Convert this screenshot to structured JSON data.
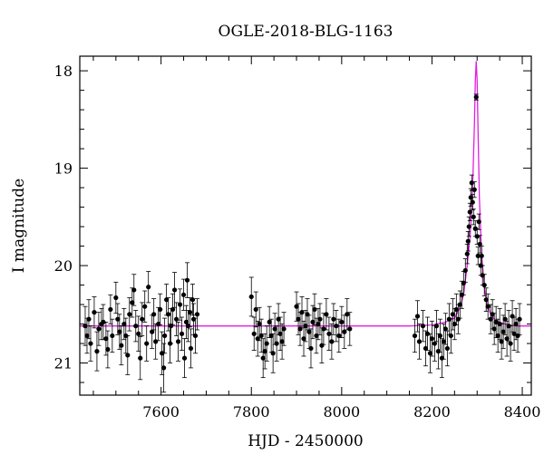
{
  "chart_data": {
    "type": "scatter",
    "title": "OGLE-2018-BLG-1163",
    "xlabel": "HJD - 2450000",
    "ylabel": "I magnitude",
    "xlim": [
      7420,
      8420
    ],
    "ylim": [
      21.33,
      17.85
    ],
    "y_inverted": true,
    "x_ticks": [
      7600,
      7800,
      8000,
      8200,
      8400
    ],
    "y_ticks": [
      18,
      19,
      20,
      21
    ],
    "grid": false,
    "colors": {
      "data": "#000000",
      "model": "#e020e0"
    },
    "model": {
      "name": "",
      "x": [
        7420,
        7600,
        7800,
        8000,
        8150,
        8200,
        8230,
        8250,
        8262,
        8270,
        8278,
        8284,
        8288,
        8291,
        8294,
        8296,
        8298,
        8300,
        8302,
        8305,
        8310,
        8316,
        8322,
        8330,
        8340,
        8355,
        8370,
        8390,
        8420
      ],
      "y": [
        20.62,
        20.62,
        20.62,
        20.62,
        20.62,
        20.61,
        20.58,
        20.54,
        20.43,
        20.3,
        20.0,
        19.72,
        19.42,
        19.05,
        18.55,
        18.1,
        17.9,
        18.1,
        18.6,
        19.3,
        19.9,
        20.22,
        20.4,
        20.5,
        20.56,
        20.59,
        20.61,
        20.62,
        20.62
      ]
    },
    "points": [
      {
        "x": 7432,
        "y": 20.62,
        "e": 0.2
      },
      {
        "x": 7436,
        "y": 20.72,
        "e": 0.18
      },
      {
        "x": 7440,
        "y": 20.55,
        "e": 0.2
      },
      {
        "x": 7444,
        "y": 20.8,
        "e": 0.18
      },
      {
        "x": 7452,
        "y": 20.48,
        "e": 0.16
      },
      {
        "x": 7458,
        "y": 20.88,
        "e": 0.2
      },
      {
        "x": 7462,
        "y": 20.65,
        "e": 0.17
      },
      {
        "x": 7468,
        "y": 20.6,
        "e": 0.16
      },
      {
        "x": 7472,
        "y": 20.58,
        "e": 0.18
      },
      {
        "x": 7478,
        "y": 20.75,
        "e": 0.17
      },
      {
        "x": 7482,
        "y": 20.86,
        "e": 0.19
      },
      {
        "x": 7488,
        "y": 20.45,
        "e": 0.15
      },
      {
        "x": 7492,
        "y": 20.72,
        "e": 0.17
      },
      {
        "x": 7500,
        "y": 20.33,
        "e": 0.16
      },
      {
        "x": 7504,
        "y": 20.55,
        "e": 0.16
      },
      {
        "x": 7508,
        "y": 20.68,
        "e": 0.18
      },
      {
        "x": 7512,
        "y": 20.82,
        "e": 0.2
      },
      {
        "x": 7518,
        "y": 20.6,
        "e": 0.16
      },
      {
        "x": 7522,
        "y": 20.72,
        "e": 0.18
      },
      {
        "x": 7526,
        "y": 20.92,
        "e": 0.2
      },
      {
        "x": 7530,
        "y": 20.5,
        "e": 0.17
      },
      {
        "x": 7536,
        "y": 20.38,
        "e": 0.15
      },
      {
        "x": 7540,
        "y": 20.25,
        "e": 0.16
      },
      {
        "x": 7544,
        "y": 20.62,
        "e": 0.16
      },
      {
        "x": 7550,
        "y": 20.7,
        "e": 0.18
      },
      {
        "x": 7554,
        "y": 20.95,
        "e": 0.22
      },
      {
        "x": 7558,
        "y": 20.55,
        "e": 0.17
      },
      {
        "x": 7564,
        "y": 20.42,
        "e": 0.16
      },
      {
        "x": 7568,
        "y": 20.8,
        "e": 0.18
      },
      {
        "x": 7572,
        "y": 20.22,
        "e": 0.16
      },
      {
        "x": 7580,
        "y": 20.68,
        "e": 0.17
      },
      {
        "x": 7584,
        "y": 20.5,
        "e": 0.16
      },
      {
        "x": 7588,
        "y": 20.78,
        "e": 0.18
      },
      {
        "x": 7594,
        "y": 20.6,
        "e": 0.17
      },
      {
        "x": 7598,
        "y": 20.45,
        "e": 0.16
      },
      {
        "x": 7602,
        "y": 20.9,
        "e": 0.22
      },
      {
        "x": 7606,
        "y": 21.05,
        "e": 0.25
      },
      {
        "x": 7608,
        "y": 20.72,
        "e": 0.18
      },
      {
        "x": 7612,
        "y": 20.35,
        "e": 0.16
      },
      {
        "x": 7616,
        "y": 20.5,
        "e": 0.17
      },
      {
        "x": 7620,
        "y": 20.8,
        "e": 0.2
      },
      {
        "x": 7622,
        "y": 20.62,
        "e": 0.18
      },
      {
        "x": 7626,
        "y": 20.45,
        "e": 0.16
      },
      {
        "x": 7630,
        "y": 20.25,
        "e": 0.18
      },
      {
        "x": 7634,
        "y": 20.55,
        "e": 0.17
      },
      {
        "x": 7638,
        "y": 20.78,
        "e": 0.2
      },
      {
        "x": 7642,
        "y": 20.4,
        "e": 0.16
      },
      {
        "x": 7646,
        "y": 20.7,
        "e": 0.17
      },
      {
        "x": 7650,
        "y": 20.3,
        "e": 0.16
      },
      {
        "x": 7652,
        "y": 20.95,
        "e": 0.2
      },
      {
        "x": 7656,
        "y": 20.58,
        "e": 0.17
      },
      {
        "x": 7658,
        "y": 20.15,
        "e": 0.18
      },
      {
        "x": 7660,
        "y": 20.62,
        "e": 0.16
      },
      {
        "x": 7664,
        "y": 20.48,
        "e": 0.15
      },
      {
        "x": 7666,
        "y": 20.85,
        "e": 0.2
      },
      {
        "x": 7670,
        "y": 20.35,
        "e": 0.16
      },
      {
        "x": 7672,
        "y": 20.55,
        "e": 0.16
      },
      {
        "x": 7676,
        "y": 20.72,
        "e": 0.18
      },
      {
        "x": 7680,
        "y": 20.5,
        "e": 0.16
      },
      {
        "x": 7800,
        "y": 20.32,
        "e": 0.2
      },
      {
        "x": 7806,
        "y": 20.7,
        "e": 0.17
      },
      {
        "x": 7810,
        "y": 20.45,
        "e": 0.18
      },
      {
        "x": 7814,
        "y": 20.75,
        "e": 0.18
      },
      {
        "x": 7818,
        "y": 20.6,
        "e": 0.17
      },
      {
        "x": 7822,
        "y": 20.72,
        "e": 0.17
      },
      {
        "x": 7826,
        "y": 20.95,
        "e": 0.2
      },
      {
        "x": 7830,
        "y": 20.88,
        "e": 0.18
      },
      {
        "x": 7834,
        "y": 20.8,
        "e": 0.18
      },
      {
        "x": 7840,
        "y": 20.58,
        "e": 0.16
      },
      {
        "x": 7844,
        "y": 20.72,
        "e": 0.17
      },
      {
        "x": 7848,
        "y": 20.9,
        "e": 0.2
      },
      {
        "x": 7852,
        "y": 20.65,
        "e": 0.16
      },
      {
        "x": 7856,
        "y": 20.8,
        "e": 0.18
      },
      {
        "x": 7860,
        "y": 20.55,
        "e": 0.16
      },
      {
        "x": 7864,
        "y": 20.7,
        "e": 0.17
      },
      {
        "x": 7868,
        "y": 20.78,
        "e": 0.18
      },
      {
        "x": 7872,
        "y": 20.65,
        "e": 0.17
      },
      {
        "x": 7900,
        "y": 20.42,
        "e": 0.15
      },
      {
        "x": 7904,
        "y": 20.55,
        "e": 0.16
      },
      {
        "x": 7908,
        "y": 20.65,
        "e": 0.17
      },
      {
        "x": 7912,
        "y": 20.48,
        "e": 0.16
      },
      {
        "x": 7916,
        "y": 20.75,
        "e": 0.18
      },
      {
        "x": 7920,
        "y": 20.62,
        "e": 0.16
      },
      {
        "x": 7924,
        "y": 20.5,
        "e": 0.16
      },
      {
        "x": 7928,
        "y": 20.68,
        "e": 0.17
      },
      {
        "x": 7932,
        "y": 20.85,
        "e": 0.2
      },
      {
        "x": 7936,
        "y": 20.58,
        "e": 0.17
      },
      {
        "x": 7940,
        "y": 20.45,
        "e": 0.16
      },
      {
        "x": 7944,
        "y": 20.72,
        "e": 0.18
      },
      {
        "x": 7948,
        "y": 20.6,
        "e": 0.16
      },
      {
        "x": 7952,
        "y": 20.55,
        "e": 0.16
      },
      {
        "x": 7956,
        "y": 20.82,
        "e": 0.18
      },
      {
        "x": 7960,
        "y": 20.65,
        "e": 0.16
      },
      {
        "x": 7966,
        "y": 20.5,
        "e": 0.16
      },
      {
        "x": 7972,
        "y": 20.7,
        "e": 0.17
      },
      {
        "x": 7978,
        "y": 20.78,
        "e": 0.18
      },
      {
        "x": 7982,
        "y": 20.55,
        "e": 0.16
      },
      {
        "x": 7988,
        "y": 20.62,
        "e": 0.16
      },
      {
        "x": 7994,
        "y": 20.72,
        "e": 0.17
      },
      {
        "x": 8000,
        "y": 20.58,
        "e": 0.16
      },
      {
        "x": 8006,
        "y": 20.68,
        "e": 0.17
      },
      {
        "x": 8012,
        "y": 20.5,
        "e": 0.16
      },
      {
        "x": 8018,
        "y": 20.65,
        "e": 0.17
      },
      {
        "x": 8162,
        "y": 20.72,
        "e": 0.17
      },
      {
        "x": 8168,
        "y": 20.52,
        "e": 0.16
      },
      {
        "x": 8172,
        "y": 20.78,
        "e": 0.18
      },
      {
        "x": 8180,
        "y": 20.62,
        "e": 0.16
      },
      {
        "x": 8186,
        "y": 20.85,
        "e": 0.18
      },
      {
        "x": 8190,
        "y": 20.7,
        "e": 0.17
      },
      {
        "x": 8196,
        "y": 20.9,
        "e": 0.2
      },
      {
        "x": 8200,
        "y": 20.75,
        "e": 0.18
      },
      {
        "x": 8206,
        "y": 20.8,
        "e": 0.18
      },
      {
        "x": 8210,
        "y": 20.62,
        "e": 0.16
      },
      {
        "x": 8214,
        "y": 20.88,
        "e": 0.18
      },
      {
        "x": 8218,
        "y": 20.72,
        "e": 0.17
      },
      {
        "x": 8222,
        "y": 20.95,
        "e": 0.2
      },
      {
        "x": 8226,
        "y": 20.78,
        "e": 0.18
      },
      {
        "x": 8230,
        "y": 20.65,
        "e": 0.16
      },
      {
        "x": 8234,
        "y": 20.85,
        "e": 0.18
      },
      {
        "x": 8238,
        "y": 20.55,
        "e": 0.16
      },
      {
        "x": 8242,
        "y": 20.72,
        "e": 0.18
      },
      {
        "x": 8246,
        "y": 20.5,
        "e": 0.16
      },
      {
        "x": 8250,
        "y": 20.6,
        "e": 0.16
      },
      {
        "x": 8254,
        "y": 20.45,
        "e": 0.16
      },
      {
        "x": 8258,
        "y": 20.55,
        "e": 0.15
      },
      {
        "x": 8262,
        "y": 20.4,
        "e": 0.14
      },
      {
        "x": 8266,
        "y": 20.3,
        "e": 0.14
      },
      {
        "x": 8270,
        "y": 20.18,
        "e": 0.12
      },
      {
        "x": 8274,
        "y": 20.05,
        "e": 0.12
      },
      {
        "x": 8278,
        "y": 19.88,
        "e": 0.1
      },
      {
        "x": 8280,
        "y": 19.75,
        "e": 0.1
      },
      {
        "x": 8282,
        "y": 19.6,
        "e": 0.1
      },
      {
        "x": 8284,
        "y": 19.45,
        "e": 0.09
      },
      {
        "x": 8286,
        "y": 19.3,
        "e": 0.09
      },
      {
        "x": 8288,
        "y": 19.15,
        "e": 0.08
      },
      {
        "x": 8290,
        "y": 19.35,
        "e": 0.08
      },
      {
        "x": 8292,
        "y": 19.5,
        "e": 0.08
      },
      {
        "x": 8294,
        "y": 19.22,
        "e": 0.08
      },
      {
        "x": 8296,
        "y": 19.62,
        "e": 0.08
      },
      {
        "x": 8298,
        "y": 18.27,
        "e": 0.03
      },
      {
        "x": 8300,
        "y": 19.7,
        "e": 0.08
      },
      {
        "x": 8302,
        "y": 19.9,
        "e": 0.09
      },
      {
        "x": 8304,
        "y": 19.55,
        "e": 0.08
      },
      {
        "x": 8306,
        "y": 19.78,
        "e": 0.09
      },
      {
        "x": 8308,
        "y": 20.0,
        "e": 0.1
      },
      {
        "x": 8310,
        "y": 19.9,
        "e": 0.1
      },
      {
        "x": 8312,
        "y": 20.1,
        "e": 0.1
      },
      {
        "x": 8316,
        "y": 20.2,
        "e": 0.11
      },
      {
        "x": 8320,
        "y": 20.35,
        "e": 0.12
      },
      {
        "x": 8324,
        "y": 20.42,
        "e": 0.13
      },
      {
        "x": 8330,
        "y": 20.55,
        "e": 0.15
      },
      {
        "x": 8334,
        "y": 20.5,
        "e": 0.15
      },
      {
        "x": 8338,
        "y": 20.65,
        "e": 0.16
      },
      {
        "x": 8342,
        "y": 20.58,
        "e": 0.16
      },
      {
        "x": 8346,
        "y": 20.72,
        "e": 0.17
      },
      {
        "x": 8350,
        "y": 20.6,
        "e": 0.16
      },
      {
        "x": 8354,
        "y": 20.78,
        "e": 0.18
      },
      {
        "x": 8358,
        "y": 20.68,
        "e": 0.17
      },
      {
        "x": 8362,
        "y": 20.55,
        "e": 0.16
      },
      {
        "x": 8366,
        "y": 20.75,
        "e": 0.18
      },
      {
        "x": 8370,
        "y": 20.62,
        "e": 0.16
      },
      {
        "x": 8374,
        "y": 20.8,
        "e": 0.18
      },
      {
        "x": 8378,
        "y": 20.52,
        "e": 0.16
      },
      {
        "x": 8382,
        "y": 20.7,
        "e": 0.17
      },
      {
        "x": 8386,
        "y": 20.6,
        "e": 0.16
      },
      {
        "x": 8390,
        "y": 20.72,
        "e": 0.17
      },
      {
        "x": 8394,
        "y": 20.55,
        "e": 0.16
      }
    ]
  }
}
